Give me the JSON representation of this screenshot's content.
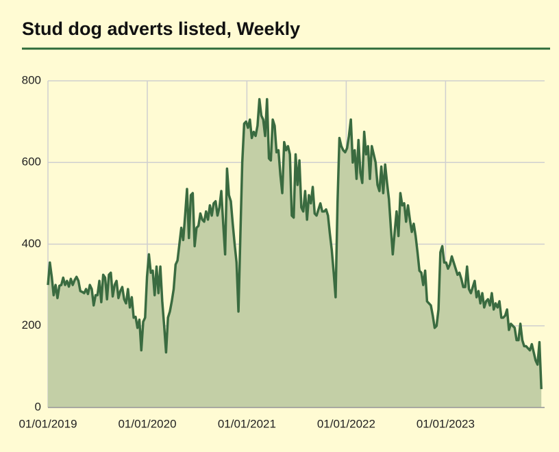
{
  "chart_data": {
    "type": "area",
    "title": "Stud dog adverts listed, Weekly",
    "x": [
      "01/01/2019",
      "08/01/2019",
      "15/01/2019",
      "22/01/2019",
      "29/01/2019",
      "05/02/2019",
      "12/02/2019",
      "19/02/2019",
      "26/02/2019",
      "05/03/2019",
      "12/03/2019",
      "19/03/2019",
      "26/03/2019",
      "02/04/2019",
      "09/04/2019",
      "16/04/2019",
      "23/04/2019",
      "30/04/2019",
      "07/05/2019",
      "14/05/2019",
      "21/05/2019",
      "28/05/2019",
      "04/06/2019",
      "11/06/2019",
      "18/06/2019",
      "25/06/2019",
      "02/07/2019",
      "09/07/2019",
      "16/07/2019",
      "23/07/2019",
      "30/07/2019",
      "06/08/2019",
      "13/08/2019",
      "20/08/2019",
      "27/08/2019",
      "03/09/2019",
      "10/09/2019",
      "17/09/2019",
      "24/09/2019",
      "01/10/2019",
      "08/10/2019",
      "15/10/2019",
      "22/10/2019",
      "29/10/2019",
      "05/11/2019",
      "12/11/2019",
      "19/11/2019",
      "26/11/2019",
      "03/12/2019",
      "10/12/2019",
      "17/12/2019",
      "24/12/2019",
      "31/12/2019",
      "07/01/2020",
      "14/01/2020",
      "21/01/2020",
      "28/01/2020",
      "04/02/2020",
      "11/02/2020",
      "18/02/2020",
      "25/02/2020",
      "03/03/2020",
      "10/03/2020",
      "17/03/2020",
      "24/03/2020",
      "31/03/2020",
      "07/04/2020",
      "14/04/2020",
      "21/04/2020",
      "28/04/2020",
      "05/05/2020",
      "12/05/2020",
      "19/05/2020",
      "26/05/2020",
      "02/06/2020",
      "09/06/2020",
      "16/06/2020",
      "23/06/2020",
      "30/06/2020",
      "07/07/2020",
      "14/07/2020",
      "21/07/2020",
      "28/07/2020",
      "04/08/2020",
      "11/08/2020",
      "18/08/2020",
      "25/08/2020",
      "01/09/2020",
      "08/09/2020",
      "15/09/2020",
      "22/09/2020",
      "29/09/2020",
      "06/10/2020",
      "13/10/2020",
      "20/10/2020",
      "27/10/2020",
      "03/11/2020",
      "10/11/2020",
      "17/11/2020",
      "24/11/2020",
      "01/12/2020",
      "08/12/2020",
      "15/12/2020",
      "22/12/2020",
      "29/12/2020",
      "05/01/2021",
      "12/01/2021",
      "19/01/2021",
      "26/01/2021",
      "02/02/2021",
      "09/02/2021",
      "16/02/2021",
      "23/02/2021",
      "02/03/2021",
      "09/03/2021",
      "16/03/2021",
      "23/03/2021",
      "30/03/2021",
      "06/04/2021",
      "13/04/2021",
      "20/04/2021",
      "27/04/2021",
      "04/05/2021",
      "11/05/2021",
      "18/05/2021",
      "25/05/2021",
      "01/06/2021",
      "08/06/2021",
      "15/06/2021",
      "22/06/2021",
      "29/06/2021",
      "06/07/2021",
      "13/07/2021",
      "20/07/2021",
      "27/07/2021",
      "03/08/2021",
      "10/08/2021",
      "17/08/2021",
      "24/08/2021",
      "31/08/2021",
      "07/09/2021",
      "14/09/2021",
      "21/09/2021",
      "28/09/2021",
      "05/10/2021",
      "12/10/2021",
      "19/10/2021",
      "26/10/2021",
      "02/11/2021",
      "09/11/2021",
      "16/11/2021",
      "23/11/2021",
      "30/11/2021",
      "07/12/2021",
      "14/12/2021",
      "21/12/2021",
      "28/12/2021",
      "04/01/2022",
      "11/01/2022",
      "18/01/2022",
      "25/01/2022",
      "01/02/2022",
      "08/02/2022",
      "15/02/2022",
      "22/02/2022",
      "01/03/2022",
      "08/03/2022",
      "15/03/2022",
      "22/03/2022",
      "29/03/2022",
      "05/04/2022",
      "12/04/2022",
      "19/04/2022",
      "26/04/2022",
      "03/05/2022",
      "10/05/2022",
      "17/05/2022",
      "24/05/2022",
      "31/05/2022",
      "07/06/2022",
      "14/06/2022",
      "21/06/2022",
      "28/06/2022",
      "05/07/2022",
      "12/07/2022",
      "19/07/2022",
      "26/07/2022",
      "02/08/2022",
      "09/08/2022",
      "16/08/2022",
      "23/08/2022",
      "30/08/2022",
      "06/09/2022",
      "13/09/2022",
      "20/09/2022",
      "27/09/2022",
      "04/10/2022",
      "11/10/2022",
      "18/10/2022",
      "25/10/2022",
      "01/11/2022",
      "08/11/2022",
      "15/11/2022",
      "22/11/2022",
      "29/11/2022",
      "06/12/2022",
      "13/12/2022",
      "20/12/2022",
      "27/12/2022",
      "03/01/2023",
      "10/01/2023",
      "17/01/2023",
      "24/01/2023",
      "31/01/2023",
      "07/02/2023",
      "14/02/2023",
      "21/02/2023",
      "28/02/2023",
      "07/03/2023",
      "14/03/2023",
      "21/03/2023",
      "28/03/2023",
      "04/04/2023",
      "11/04/2023",
      "18/04/2023",
      "25/04/2023",
      "02/05/2023",
      "09/05/2023",
      "16/05/2023",
      "23/05/2023",
      "30/05/2023",
      "06/06/2023",
      "13/06/2023",
      "20/06/2023",
      "27/06/2023",
      "04/07/2023",
      "11/07/2023",
      "18/07/2023",
      "25/07/2023",
      "01/08/2023",
      "08/08/2023",
      "15/08/2023",
      "22/08/2023",
      "29/08/2023",
      "05/09/2023",
      "12/09/2023",
      "19/09/2023",
      "26/09/2023",
      "03/10/2023",
      "10/10/2023",
      "17/10/2023",
      "24/10/2023",
      "31/10/2023",
      "07/11/2023",
      "14/11/2023",
      "21/11/2023",
      "28/11/2023",
      "05/12/2023",
      "12/12/2023",
      "19/12/2023"
    ],
    "values": [
      300,
      355,
      320,
      275,
      300,
      268,
      298,
      300,
      318,
      300,
      310,
      296,
      315,
      300,
      312,
      320,
      310,
      285,
      283,
      280,
      290,
      278,
      300,
      290,
      250,
      275,
      275,
      310,
      258,
      325,
      318,
      265,
      325,
      330,
      272,
      300,
      310,
      268,
      285,
      295,
      265,
      255,
      290,
      245,
      270,
      220,
      222,
      195,
      215,
      140,
      210,
      220,
      320,
      375,
      330,
      335,
      275,
      345,
      280,
      345,
      260,
      200,
      135,
      220,
      235,
      260,
      290,
      350,
      360,
      400,
      440,
      410,
      470,
      535,
      415,
      520,
      525,
      395,
      440,
      445,
      475,
      460,
      455,
      480,
      460,
      495,
      470,
      500,
      505,
      470,
      490,
      530,
      450,
      375,
      585,
      520,
      505,
      450,
      400,
      355,
      235,
      420,
      600,
      695,
      700,
      685,
      705,
      660,
      675,
      665,
      690,
      755,
      715,
      705,
      665,
      755,
      610,
      605,
      705,
      690,
      625,
      630,
      570,
      525,
      650,
      630,
      640,
      620,
      470,
      465,
      620,
      545,
      605,
      490,
      480,
      530,
      460,
      520,
      500,
      540,
      475,
      470,
      485,
      500,
      480,
      480,
      485,
      470,
      425,
      385,
      330,
      270,
      500,
      660,
      640,
      630,
      625,
      635,
      665,
      705,
      600,
      630,
      560,
      655,
      575,
      550,
      675,
      620,
      640,
      560,
      640,
      620,
      600,
      545,
      530,
      590,
      525,
      595,
      550,
      510,
      440,
      375,
      430,
      480,
      420,
      525,
      495,
      500,
      455,
      495,
      460,
      430,
      450,
      420,
      380,
      335,
      330,
      300,
      335,
      260,
      255,
      250,
      225,
      195,
      200,
      240,
      380,
      395,
      355,
      355,
      340,
      350,
      370,
      355,
      340,
      325,
      330,
      315,
      295,
      295,
      345,
      290,
      280,
      295,
      310,
      270,
      285,
      255,
      280,
      245,
      260,
      265,
      250,
      280,
      240,
      255,
      245,
      260,
      220,
      220,
      225,
      240,
      190,
      205,
      200,
      195,
      165,
      165,
      205,
      165,
      150,
      150,
      145,
      140,
      155,
      135,
      115,
      105,
      160,
      45
    ],
    "color": "#3a6b40",
    "fill": "#c3cfa6",
    "xlim": [
      "01/01/2019",
      "31/12/2023"
    ],
    "xticks": [
      "01/01/2019",
      "01/01/2020",
      "01/01/2021",
      "01/01/2022",
      "01/01/2023"
    ],
    "ylim": [
      0,
      800
    ],
    "yticks": [
      0,
      200,
      400,
      600,
      800
    ],
    "grid": true
  }
}
